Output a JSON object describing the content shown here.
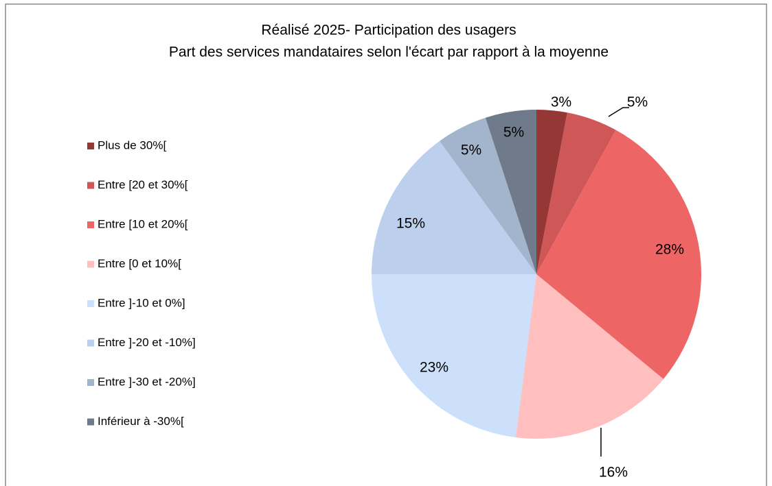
{
  "chart_data": {
    "type": "pie",
    "title": "Réalisé 2025- Participation des usagers",
    "subtitle": "Part des services mandataires selon l'écart par rapport à la moyenne",
    "categories": [
      "Plus de 30%[",
      "Entre [20 et 30%[",
      "Entre [10 et 20%[",
      "Entre [0 et 10%[",
      "Entre ]-10 et 0%]",
      "Entre ]-20 et -10%]",
      "Entre ]-30 et -20%]",
      "Inférieur à -30%["
    ],
    "values": [
      3,
      5,
      28,
      16,
      23,
      15,
      5,
      5
    ],
    "value_labels": [
      "3%",
      "5%",
      "28%",
      "16%",
      "23%",
      "15%",
      "5%",
      "5%"
    ],
    "colors": [
      "#953735",
      "#d05757",
      "#ee6565",
      "#ffbfbf",
      "#cce0fb",
      "#bcd0ee",
      "#a3b4cd",
      "#6f7b8b"
    ],
    "legend": "left"
  }
}
